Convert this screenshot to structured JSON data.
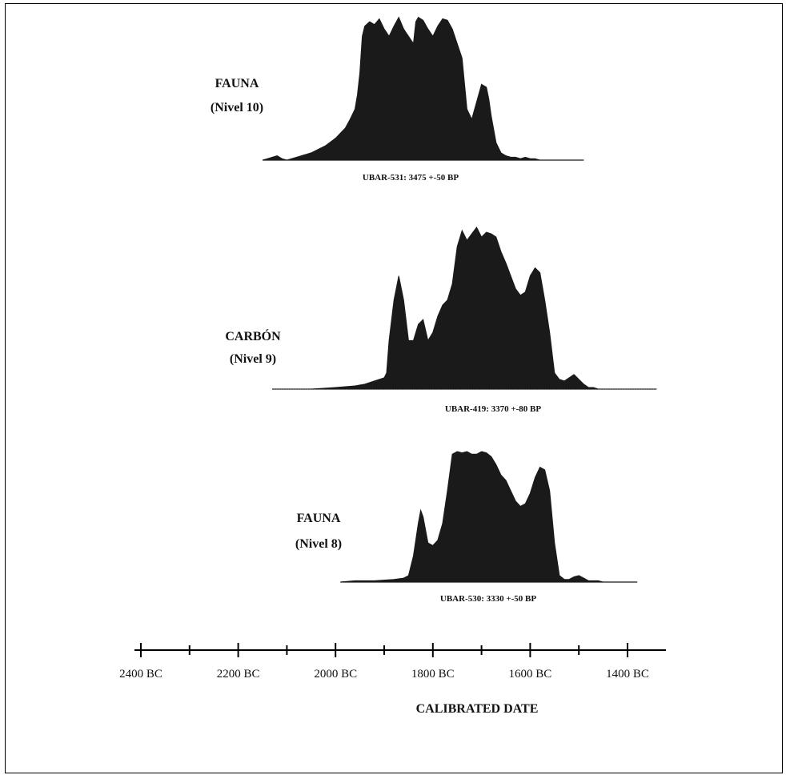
{
  "chart_data": {
    "type": "area",
    "xlabel": "CALIBRATED DATE",
    "x_ticks": [
      "2400 BC",
      "2200 BC",
      "2000 BC",
      "1800 BC",
      "1600 BC",
      "1400 BC"
    ],
    "x_tick_values": [
      -2400,
      -2200,
      -2000,
      -1800,
      -1600,
      -1400
    ],
    "xlim": [
      -2400,
      -1320
    ],
    "grid": false,
    "series": [
      {
        "sample_line1": "FAUNA",
        "sample_line2": "(Nivel 10)",
        "caption": "UBAR-531: 3475 +-50 BP",
        "x": [
          -2150,
          -2140,
          -2120,
          -2110,
          -2100,
          -2080,
          -2050,
          -2020,
          -2000,
          -1980,
          -1970,
          -1960,
          -1955,
          -1950,
          -1945,
          -1940,
          -1930,
          -1920,
          -1910,
          -1900,
          -1890,
          -1880,
          -1870,
          -1860,
          -1850,
          -1840,
          -1835,
          -1830,
          -1820,
          -1810,
          -1800,
          -1790,
          -1780,
          -1770,
          -1760,
          -1750,
          -1740,
          -1730,
          -1720,
          -1710,
          -1700,
          -1690,
          -1685,
          -1680,
          -1670,
          -1660,
          -1650,
          -1640,
          -1630,
          -1620,
          -1610,
          -1600,
          -1590,
          -1580,
          -1570,
          -1560,
          -1550,
          -1540,
          -1520,
          -1500,
          -1490
        ],
        "y": [
          0,
          0.01,
          0.03,
          0.01,
          0,
          0.02,
          0.05,
          0.1,
          0.15,
          0.22,
          0.28,
          0.35,
          0.45,
          0.6,
          0.85,
          0.92,
          0.95,
          0.93,
          0.97,
          0.9,
          0.85,
          0.92,
          0.98,
          0.9,
          0.85,
          0.8,
          0.95,
          0.98,
          0.96,
          0.9,
          0.85,
          0.92,
          0.97,
          0.96,
          0.9,
          0.8,
          0.7,
          0.35,
          0.28,
          0.4,
          0.52,
          0.5,
          0.42,
          0.3,
          0.12,
          0.05,
          0.03,
          0.02,
          0.02,
          0.01,
          0.02,
          0.01,
          0.01,
          0,
          0,
          0,
          0,
          0,
          0,
          0,
          0
        ]
      },
      {
        "sample_line1": "CARBÓN",
        "sample_line2": "(Nivel 9)",
        "caption": "UBAR-419: 3370 +-80 BP",
        "x": [
          -2130,
          -2070,
          -2060,
          -2050,
          -2000,
          -1960,
          -1940,
          -1920,
          -1900,
          -1895,
          -1890,
          -1880,
          -1870,
          -1860,
          -1850,
          -1840,
          -1830,
          -1820,
          -1810,
          -1800,
          -1790,
          -1780,
          -1770,
          -1760,
          -1750,
          -1740,
          -1730,
          -1720,
          -1710,
          -1700,
          -1690,
          -1680,
          -1670,
          -1660,
          -1650,
          -1640,
          -1630,
          -1620,
          -1610,
          -1600,
          -1590,
          -1580,
          -1570,
          -1560,
          -1550,
          -1540,
          -1530,
          -1520,
          -1510,
          -1500,
          -1490,
          -1480,
          -1470,
          -1460,
          -1450,
          -1440,
          -1430,
          -1420,
          -1410,
          -1400,
          -1380,
          -1360,
          -1340
        ],
        "y": [
          0,
          0,
          0,
          0,
          0.01,
          0.02,
          0.03,
          0.05,
          0.07,
          0.1,
          0.3,
          0.55,
          0.7,
          0.55,
          0.3,
          0.3,
          0.4,
          0.43,
          0.3,
          0.35,
          0.45,
          0.52,
          0.55,
          0.65,
          0.88,
          0.98,
          0.92,
          0.96,
          1,
          0.94,
          0.97,
          0.96,
          0.94,
          0.85,
          0.78,
          0.7,
          0.62,
          0.58,
          0.6,
          0.7,
          0.75,
          0.72,
          0.55,
          0.35,
          0.1,
          0.06,
          0.05,
          0.07,
          0.09,
          0.06,
          0.03,
          0.01,
          0.01,
          0,
          0,
          0,
          0,
          0,
          0,
          0,
          0,
          0,
          0
        ]
      },
      {
        "sample_line1": "FAUNA",
        "sample_line2": "(Nivel 8)",
        "caption": "UBAR-530: 3330 +-50 BP",
        "x": [
          -1990,
          -1960,
          -1920,
          -1880,
          -1860,
          -1850,
          -1840,
          -1830,
          -1825,
          -1820,
          -1810,
          -1800,
          -1790,
          -1780,
          -1770,
          -1760,
          -1750,
          -1740,
          -1730,
          -1720,
          -1710,
          -1700,
          -1690,
          -1680,
          -1670,
          -1660,
          -1650,
          -1640,
          -1630,
          -1620,
          -1610,
          -1600,
          -1590,
          -1580,
          -1570,
          -1560,
          -1550,
          -1540,
          -1530,
          -1520,
          -1510,
          -1500,
          -1490,
          -1480,
          -1470,
          -1460,
          -1450,
          -1440,
          -1430,
          -1420,
          -1410,
          -1400,
          -1390,
          -1380
        ],
        "y": [
          0,
          0.01,
          0.01,
          0.02,
          0.03,
          0.05,
          0.2,
          0.45,
          0.55,
          0.5,
          0.3,
          0.28,
          0.32,
          0.45,
          0.7,
          0.98,
          1,
          0.99,
          1,
          0.98,
          0.98,
          1,
          0.99,
          0.96,
          0.9,
          0.82,
          0.78,
          0.7,
          0.62,
          0.58,
          0.6,
          0.68,
          0.8,
          0.88,
          0.86,
          0.7,
          0.3,
          0.05,
          0.02,
          0.02,
          0.04,
          0.05,
          0.03,
          0.01,
          0.01,
          0.01,
          0,
          0,
          0,
          0,
          0,
          0,
          0,
          0
        ]
      }
    ]
  }
}
